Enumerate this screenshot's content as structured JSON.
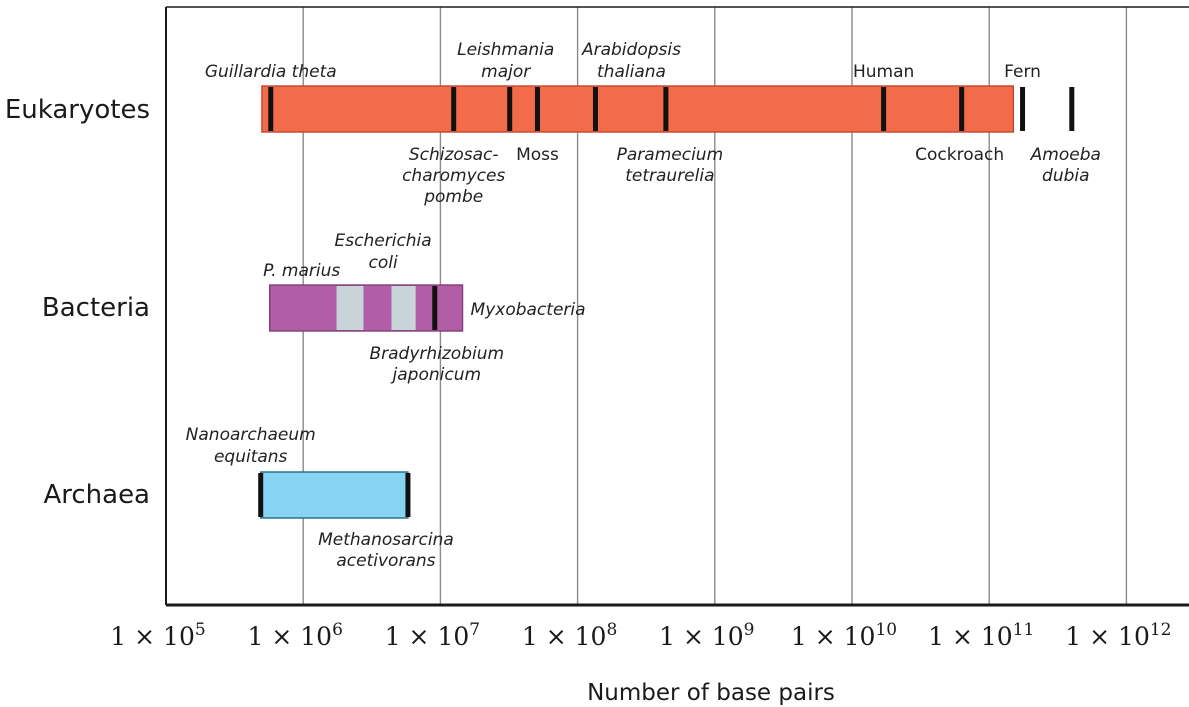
{
  "chart_data": {
    "type": "range",
    "xlabel": "Number of base pairs",
    "x_scale": "log10",
    "xlim": [
      100000,
      1000000000000
    ],
    "x_ticks": [
      {
        "value": 100000,
        "label": "1 × 10",
        "exp": "5"
      },
      {
        "value": 1000000,
        "label": "1 × 10",
        "exp": "6"
      },
      {
        "value": 10000000,
        "label": "1 × 10",
        "exp": "7"
      },
      {
        "value": 100000000,
        "label": "1 × 10",
        "exp": "8"
      },
      {
        "value": 1000000000,
        "label": "1 × 10",
        "exp": "9"
      },
      {
        "value": 10000000000,
        "label": "1 × 10",
        "exp": "10"
      },
      {
        "value": 100000000000,
        "label": "1 × 10",
        "exp": "11"
      },
      {
        "value": 1000000000000,
        "label": "1 × 10",
        "exp": "12"
      }
    ],
    "grid": true,
    "groups": [
      {
        "name": "Eukaryotes",
        "color": "#f26b4a",
        "range": [
          500000,
          150000000000
        ],
        "highlights": [],
        "markers": [
          {
            "name": "Guillardia theta",
            "value": 580000,
            "italic": true
          },
          {
            "name": "Schizosac-\ncharomyces\npombe",
            "value": 12500000,
            "italic": true
          },
          {
            "name": "Leishmania\nmajor",
            "value": 32000000,
            "italic": true
          },
          {
            "name": "Moss",
            "value": 51000000,
            "italic": false
          },
          {
            "name": "Arabidopsis\nthaliana",
            "value": 135000000,
            "italic": true
          },
          {
            "name": "Paramecium\ntetraurelia",
            "value": 440000000,
            "italic": true
          },
          {
            "name": "Human",
            "value": 17000000000,
            "italic": false
          },
          {
            "name": "Cockroach",
            "value": 63000000000,
            "italic": false
          },
          {
            "name": "Fern",
            "value": 175000000000,
            "italic": false
          },
          {
            "name": "Amoeba\ndubia",
            "value": 400000000000,
            "italic": true
          }
        ]
      },
      {
        "name": "Bacteria",
        "color": "#b25ea6",
        "range": [
          570000,
          14500000
        ],
        "highlights": [
          {
            "range": [
              1750000,
              2750000
            ],
            "color": "#c9d4d9"
          },
          {
            "range": [
              4400000,
              6600000
            ],
            "color": "#c9d4d9"
          }
        ],
        "markers": [
          {
            "name": "P. marius",
            "value": 570000,
            "italic": true,
            "hidden_tick": true
          },
          {
            "name": "Escherichia\ncoli",
            "value": 4600000,
            "italic": true,
            "hidden_tick": true
          },
          {
            "name": "Bradyrhizobium\njaponicum",
            "value": 9100000,
            "italic": true
          },
          {
            "name": "Myxobacteria",
            "value": 14500000,
            "italic": true,
            "hidden_tick": true
          }
        ]
      },
      {
        "name": "Archaea",
        "color": "#87d3f3",
        "range": [
          490000,
          5800000
        ],
        "highlights": [],
        "markers": [
          {
            "name": "Nanoarchaeum\nequitans",
            "value": 490000,
            "italic": true
          },
          {
            "name": "Methanosarcina\nacetivorans",
            "value": 5800000,
            "italic": true
          }
        ]
      }
    ]
  }
}
